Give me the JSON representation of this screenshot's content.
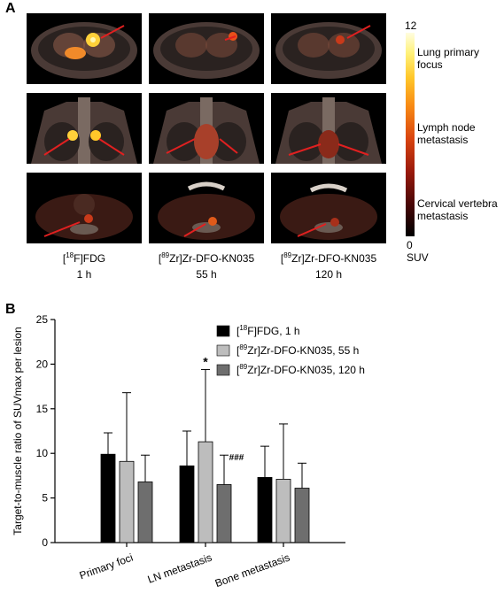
{
  "panel_a": {
    "letter": "A",
    "colorbar": {
      "max": "12",
      "min": "0",
      "unit": "SUV",
      "labels": [
        "Lung primary focus",
        "Lymph node metastasis",
        "Cervical vertebra metastasis"
      ]
    },
    "captions": [
      {
        "line1": "FDG",
        "line1_sup": "18",
        "line1_el": "F",
        "line2": "1 h"
      },
      {
        "line1": "Zr-DFO-KN035",
        "line1_sup": "89",
        "line1_el": "",
        "line2": "55 h"
      },
      {
        "line1": "Zr-DFO-KN035",
        "line1_sup": "89",
        "line1_el": "",
        "line2": "120 h"
      }
    ]
  },
  "panel_b": {
    "letter": "B"
  },
  "chart_data": {
    "type": "bar",
    "categories": [
      "Primary foci",
      "LN metastasis",
      "Bone metastasis"
    ],
    "ylabel": "Target-to-muscle ratio of SUVmax per lesion",
    "ylim": [
      0,
      25
    ],
    "yticks": [
      0,
      5,
      10,
      15,
      20,
      25
    ],
    "legend_position": "top-right",
    "series": [
      {
        "name": "[18F]FDG, 1 h",
        "sup": "18",
        "el": "F",
        "rest": "]FDG, 1 h",
        "color": "#000000",
        "values": [
          9.9,
          8.6,
          7.3
        ],
        "errors": [
          2.4,
          3.9,
          3.5
        ]
      },
      {
        "name": "[89Zr]Zr-DFO-KN035, 55 h",
        "sup": "89",
        "el": "Zr",
        "rest": "]Zr-DFO-KN035, 55 h",
        "color": "#bdbdbd",
        "values": [
          9.1,
          11.3,
          7.1
        ],
        "errors": [
          7.7,
          8.1,
          6.2
        ]
      },
      {
        "name": "[89Zr]Zr-DFO-KN035, 120 h",
        "sup": "89",
        "el": "Zr",
        "rest": "]Zr-DFO-KN035, 120 h",
        "color": "#6e6e6e",
        "values": [
          6.8,
          6.5,
          6.1
        ],
        "errors": [
          3.0,
          3.3,
          2.8
        ]
      }
    ],
    "annotations": [
      {
        "text": "*",
        "category": 1,
        "series": 1
      },
      {
        "text": "###",
        "category": 1,
        "series": 2
      }
    ]
  }
}
